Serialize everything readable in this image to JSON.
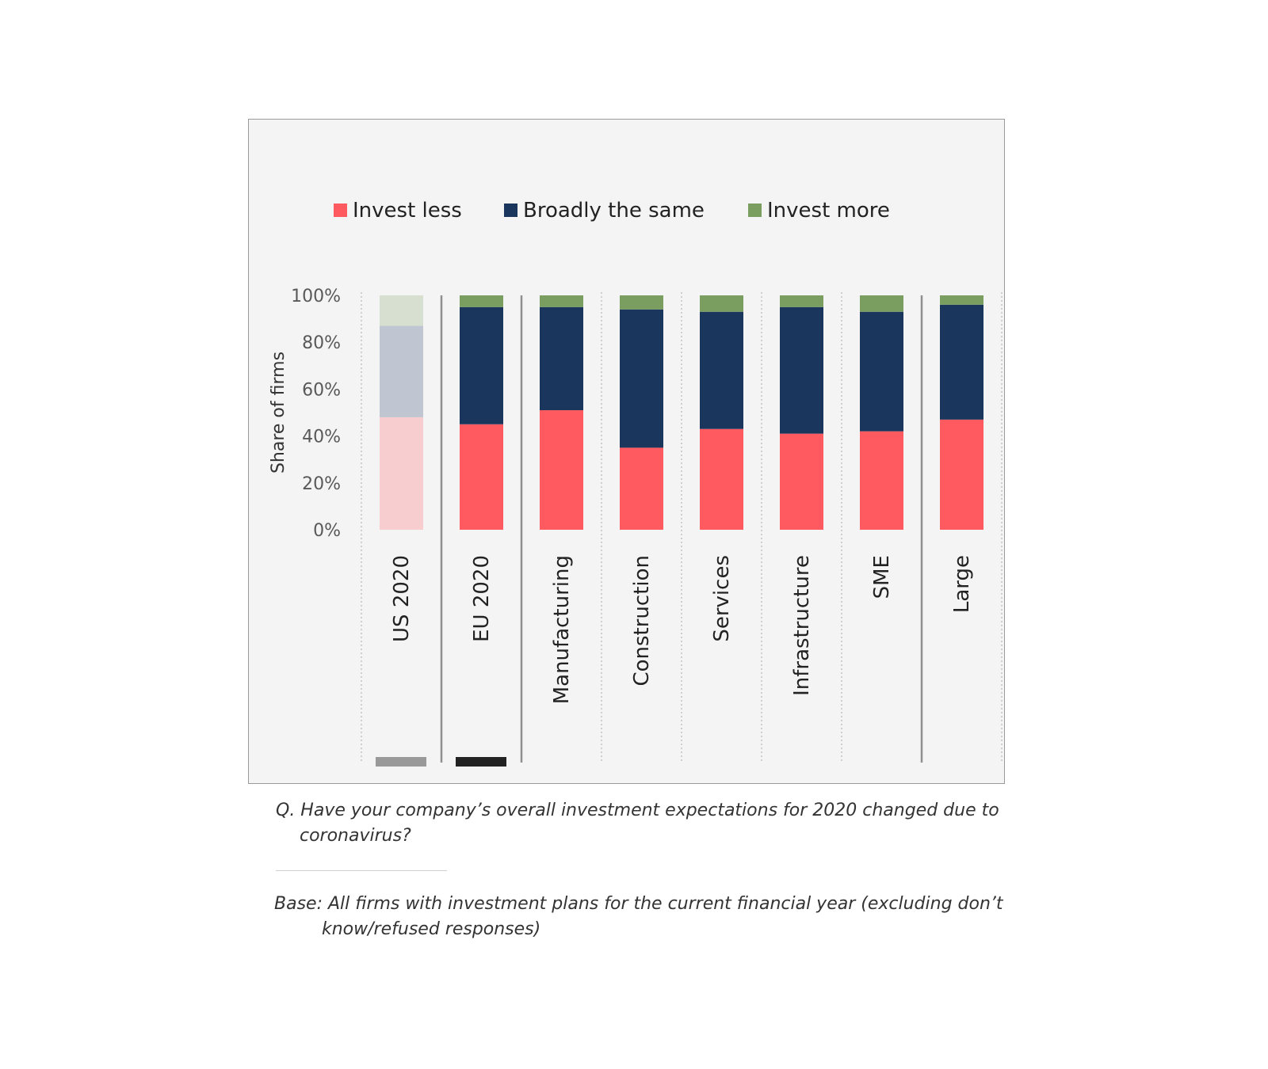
{
  "chart_data": {
    "type": "bar",
    "stacked": true,
    "ylabel": "Share of firms",
    "ylim": [
      0,
      100
    ],
    "yticks": [
      "0%",
      "20%",
      "40%",
      "60%",
      "80%",
      "100%"
    ],
    "categories": [
      "US 2020",
      "EU 2020",
      "Manufacturing",
      "Construction",
      "Services",
      "Infrastructure",
      "SME",
      "Large"
    ],
    "series": [
      {
        "name": "Invest less",
        "color": "#ff5a5f",
        "faded_color": "#f7cdd0",
        "values": [
          48,
          45,
          51,
          35,
          43,
          41,
          42,
          47
        ]
      },
      {
        "name": "Broadly the same",
        "color": "#1b365d",
        "faded_color": "#c0c6d1",
        "values": [
          39,
          50,
          44,
          59,
          50,
          54,
          51,
          49
        ]
      },
      {
        "name": "Invest more",
        "color": "#7a9d60",
        "faded_color": "#d6dfd0",
        "values": [
          13,
          5,
          5,
          6,
          7,
          5,
          7,
          4
        ]
      }
    ],
    "faded_categories": [
      "US 2020"
    ],
    "legend_position": "top",
    "marker_colors": {
      "US 2020": "#999999",
      "EU 2020": "#222222"
    }
  },
  "notes": {
    "question": "Q. Have your company’s overall investment expectations for 2020 changed due to coronavirus?",
    "base": "Base: All firms with investment plans for the current financial year (excluding don’t know/refused responses)"
  }
}
